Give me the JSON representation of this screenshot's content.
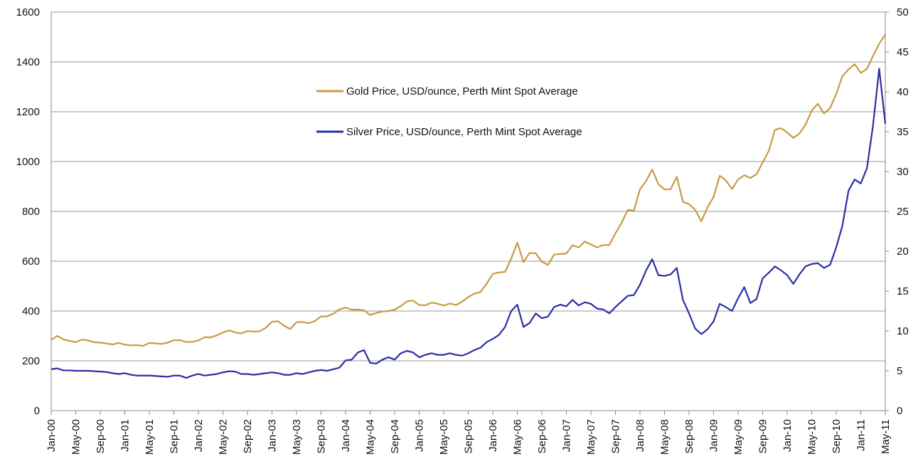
{
  "chart_data": {
    "type": "line",
    "categories": [
      "Jan-00",
      null,
      null,
      null,
      "May-00",
      null,
      null,
      null,
      "Sep-00",
      null,
      null,
      null,
      "Jan-01",
      null,
      null,
      null,
      "May-01",
      null,
      null,
      null,
      "Sep-01",
      null,
      null,
      null,
      "Jan-02",
      null,
      null,
      null,
      "May-02",
      null,
      null,
      null,
      "Sep-02",
      null,
      null,
      null,
      "Jan-03",
      null,
      null,
      null,
      "May-03",
      null,
      null,
      null,
      "Sep-03",
      null,
      null,
      null,
      "Jan-04",
      null,
      null,
      null,
      "May-04",
      null,
      null,
      null,
      "Sep-04",
      null,
      null,
      null,
      "Jan-05",
      null,
      null,
      null,
      "May-05",
      null,
      null,
      null,
      "Sep-05",
      null,
      null,
      null,
      "Jan-06",
      null,
      null,
      null,
      "May-06",
      null,
      null,
      null,
      "Sep-06",
      null,
      null,
      null,
      "Jan-07",
      null,
      null,
      null,
      "May-07",
      null,
      null,
      null,
      "Sep-07",
      null,
      null,
      null,
      "Jan-08",
      null,
      null,
      null,
      "May-08",
      null,
      null,
      null,
      "Sep-08",
      null,
      null,
      null,
      "Jan-09",
      null,
      null,
      null,
      "May-09",
      null,
      null,
      null,
      "Sep-09",
      null,
      null,
      null,
      "Jan-10",
      null,
      null,
      null,
      "May-10",
      null,
      null,
      null,
      "Sep-10",
      null,
      null,
      null,
      "Jan-11",
      null,
      null,
      null,
      "May-11"
    ],
    "series": [
      {
        "name": "Gold Price, USD/ounce, Perth Mint Spot Average",
        "color": "#c89b45",
        "axis": "y",
        "values": [
          284,
          300,
          286,
          280,
          275,
          285,
          282,
          275,
          273,
          270,
          266,
          272,
          265,
          262,
          263,
          260,
          272,
          270,
          268,
          273,
          283,
          283,
          276,
          276,
          282,
          295,
          294,
          302,
          314,
          322,
          314,
          310,
          320,
          317,
          319,
          333,
          357,
          359,
          340,
          328,
          355,
          356,
          351,
          360,
          378,
          379,
          389,
          407,
          414,
          405,
          406,
          403,
          384,
          392,
          398,
          400,
          405,
          420,
          439,
          442,
          424,
          423,
          434,
          429,
          422,
          430,
          424,
          437,
          456,
          470,
          476,
          510,
          549,
          555,
          557,
          610,
          675,
          596,
          633,
          632,
          598,
          585,
          627,
          629,
          631,
          664,
          655,
          679,
          667,
          655,
          665,
          665,
          712,
          754,
          806,
          803,
          889,
          922,
          968,
          909,
          888,
          889,
          939,
          839,
          829,
          806,
          760,
          816,
          858,
          943,
          924,
          890,
          928,
          945,
          934,
          949,
          996,
          1043,
          1127,
          1134,
          1117,
          1095,
          1113,
          1148,
          1205,
          1232,
          1193,
          1215,
          1271,
          1343,
          1370,
          1391,
          1356,
          1372,
          1424,
          1473,
          1510
        ]
      },
      {
        "name": "Silver Price, USD/ounce, Perth Mint Spot Average",
        "color": "#2b2fa3",
        "axis": "y2",
        "values": [
          5.2,
          5.3,
          5.05,
          5.05,
          5.0,
          5.0,
          5.0,
          4.95,
          4.9,
          4.85,
          4.7,
          4.6,
          4.7,
          4.5,
          4.4,
          4.4,
          4.4,
          4.35,
          4.3,
          4.25,
          4.4,
          4.4,
          4.1,
          4.4,
          4.6,
          4.4,
          4.5,
          4.6,
          4.8,
          4.95,
          4.9,
          4.6,
          4.6,
          4.5,
          4.6,
          4.7,
          4.8,
          4.7,
          4.5,
          4.5,
          4.7,
          4.6,
          4.8,
          5.0,
          5.1,
          5.0,
          5.2,
          5.4,
          6.3,
          6.4,
          7.3,
          7.6,
          6.0,
          5.9,
          6.4,
          6.7,
          6.4,
          7.2,
          7.5,
          7.3,
          6.7,
          7.0,
          7.2,
          7.0,
          7.0,
          7.2,
          7.0,
          6.9,
          7.2,
          7.6,
          7.9,
          8.6,
          9.0,
          9.5,
          10.5,
          12.5,
          13.3,
          10.5,
          11.0,
          12.2,
          11.6,
          11.8,
          13.0,
          13.3,
          13.1,
          13.9,
          13.2,
          13.6,
          13.4,
          12.8,
          12.7,
          12.2,
          13.0,
          13.7,
          14.4,
          14.5,
          15.8,
          17.6,
          19.0,
          17.0,
          16.9,
          17.1,
          17.9,
          13.9,
          12.2,
          10.3,
          9.6,
          10.2,
          11.2,
          13.4,
          13.0,
          12.5,
          14.1,
          15.5,
          13.5,
          14.0,
          16.6,
          17.3,
          18.1,
          17.6,
          17.0,
          15.9,
          17.1,
          18.1,
          18.4,
          18.5,
          17.9,
          18.3,
          20.5,
          23.2,
          27.6,
          29.0,
          28.5,
          30.4,
          35.8,
          42.9,
          36.0
        ]
      }
    ],
    "ylim": [
      0,
      1600
    ],
    "yticks": [
      0,
      200,
      400,
      600,
      800,
      1000,
      1200,
      1400,
      1600
    ],
    "y2lim": [
      0,
      50
    ],
    "y2ticks": [
      0,
      5,
      10,
      15,
      20,
      25,
      30,
      35,
      40,
      45,
      50
    ],
    "grid": true
  }
}
